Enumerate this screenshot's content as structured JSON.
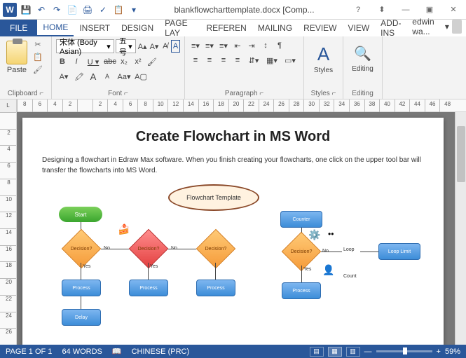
{
  "qat": [
    "💾",
    "↶",
    "↷",
    "📄",
    "🖨",
    "✓",
    "📋"
  ],
  "title": "blankflowcharttemplate.docx [Comp...",
  "win": {
    "help": "?",
    "resize": "⬍",
    "min": "—",
    "max": "▣",
    "close": "✕"
  },
  "tabs": {
    "file": "FILE",
    "items": [
      "HOME",
      "INSERT",
      "DESIGN",
      "PAGE LAY",
      "REFEREN",
      "MAILING",
      "REVIEW",
      "VIEW",
      "ADD-INS"
    ],
    "active": 0,
    "user": "edwin wa..."
  },
  "ribbon": {
    "clipboard": {
      "label": "Clipboard",
      "paste": "Paste",
      "dialog": "⌐"
    },
    "font": {
      "label": "Font",
      "name": "宋体 (Body Asian)",
      "size": "五号",
      "row2": [
        "B",
        "I",
        "U ▾",
        "abc",
        "x₂",
        "x²",
        "🖌"
      ],
      "row3": [
        "A▾",
        "🖍",
        "A",
        "A",
        "Aa▾",
        "A▢"
      ],
      "grow": "A▴",
      "shrink": "A▾",
      "clear": "A̸",
      "boxed": "A",
      "dialog": "⌐"
    },
    "para": {
      "label": "Paragraph",
      "row1": [
        "≡▾",
        "≡▾",
        "≡▾",
        "⇤",
        "⇥",
        "↕",
        "¶"
      ],
      "row2": [
        "≡",
        "≡",
        "≡",
        "≡",
        "⇵▾",
        "▦▾",
        "▭▾"
      ],
      "dialog": "⌐"
    },
    "styles": {
      "label": "Styles",
      "icon": "A",
      "dialog": "⌐"
    },
    "editing": {
      "label": "Editing",
      "icon": "🔍"
    }
  },
  "ruler_h": [
    "8",
    "6",
    "4",
    "2",
    "",
    "2",
    "4",
    "6",
    "8",
    "10",
    "12",
    "14",
    "16",
    "18",
    "20",
    "22",
    "24",
    "26",
    "28",
    "30",
    "32",
    "34",
    "36",
    "38",
    "40",
    "42",
    "44",
    "46",
    "48"
  ],
  "ruler_v": [
    "",
    "2",
    "4",
    "6",
    "8",
    "10",
    "12",
    "14",
    "16",
    "18",
    "20",
    "22",
    "24",
    "26"
  ],
  "doc": {
    "title": "Create Flowchart in MS Word",
    "body": "Designing a flowchart in Edraw Max software. When you finish creating your flowcharts, one click on the upper tool bar will transfer the flowcharts into MS Word.",
    "template_label": "Flowchart Template",
    "start": "Start",
    "decision": "Decision?",
    "process": "Process",
    "delay": "Delay",
    "counter": "Counter",
    "loop": "Loop",
    "loop_limit": "Loop Limit",
    "count": "Count",
    "yes": "Yes",
    "no": "No"
  },
  "status": {
    "page": "PAGE 1 OF 1",
    "words": "64 WORDS",
    "proof": "📖",
    "lang": "CHINESE (PRC)",
    "zoom": "59%",
    "minus": "—",
    "plus": "+"
  },
  "colors": {
    "accent": "#2a579a",
    "ribbon_bg": "#f3f3f3",
    "doc_bg": "#787878",
    "green": "#3aa52e",
    "orange": "#f59b3a",
    "red": "#e34040",
    "blue": "#3d8dd8",
    "brown": "#8b4a2a"
  }
}
